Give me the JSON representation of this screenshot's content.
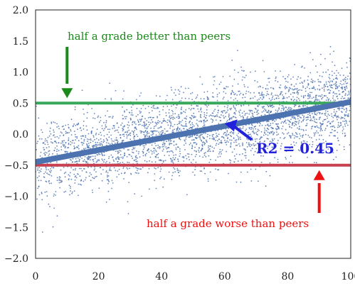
{
  "chart_data": {
    "type": "scatter",
    "title": "",
    "xlabel": "",
    "ylabel": "",
    "xlim": [
      0,
      100
    ],
    "ylim": [
      -2.0,
      2.0
    ],
    "x_ticks": [
      "0",
      "20",
      "40",
      "60",
      "80",
      "100"
    ],
    "y_ticks": [
      "2.0",
      "1.5",
      "1.0",
      "0.5",
      "0.0",
      "−0.5",
      "−1.0",
      "−1.5",
      "−2.0"
    ],
    "grid": false,
    "scatter": {
      "color": "#4c72b0",
      "description_points": "dense cloud of small points over x 0-100, y mostly between -1.5 and 1.9"
    },
    "fit_line": {
      "x": [
        0,
        100
      ],
      "y": [
        -0.45,
        0.52
      ],
      "color": "#4c72b0"
    },
    "hlines": [
      {
        "y": 0.5,
        "color": "#3aa85a"
      },
      {
        "y": -0.5,
        "color": "#c8404f"
      }
    ],
    "annotations": [
      {
        "text": "half a grade better than peers",
        "color": "#1a8a1a",
        "arrow_to": [
          10,
          0.58
        ]
      },
      {
        "text": "half a grade worse than peers",
        "color": "#ee1111",
        "arrow_to": [
          90,
          -0.58
        ]
      },
      {
        "text": "R2 = 0.45",
        "color": "#2222dd",
        "arrow_to": [
          60,
          0.1
        ]
      }
    ]
  }
}
